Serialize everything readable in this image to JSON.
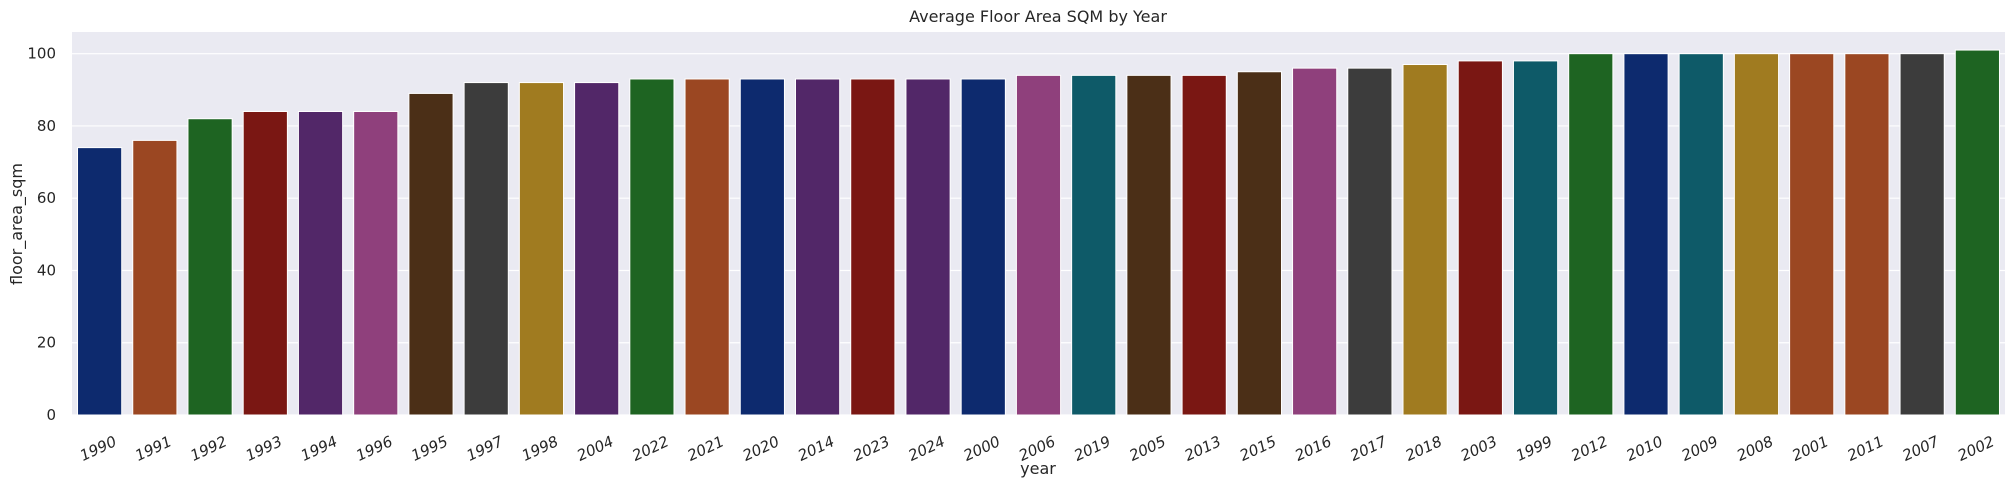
{
  "chart_data": {
    "type": "bar",
    "title": "Average Floor Area SQM by Year",
    "xlabel": "year",
    "ylabel": "floor_area_sqm",
    "categories": [
      "1990",
      "1991",
      "1992",
      "1993",
      "1994",
      "1996",
      "1995",
      "1997",
      "1998",
      "2004",
      "2022",
      "2021",
      "2020",
      "2014",
      "2023",
      "2024",
      "2000",
      "2006",
      "2019",
      "2005",
      "2013",
      "2015",
      "2016",
      "2017",
      "2018",
      "2003",
      "1999",
      "2012",
      "2010",
      "2009",
      "2008",
      "2001",
      "2011",
      "2007",
      "2002"
    ],
    "values": [
      74,
      76,
      82,
      84,
      84,
      84,
      89,
      92,
      92,
      92,
      93,
      93,
      93,
      93,
      93,
      93,
      93,
      94,
      94,
      94,
      94,
      95,
      96,
      96,
      97,
      98,
      98,
      100,
      100,
      100,
      100,
      100,
      100,
      100,
      101
    ],
    "colors": [
      "#0d2a6e",
      "#9b4722",
      "#1e6422",
      "#7a1713",
      "#522768",
      "#8f407c",
      "#4b2f17",
      "#3c3c3c",
      "#a07b20",
      "#522768",
      "#1e6422",
      "#9b4722",
      "#0d2a6e",
      "#522768",
      "#7a1713",
      "#522768",
      "#0d2a6e",
      "#8f407c",
      "#0e5a68",
      "#4b2f17",
      "#7a1713",
      "#4b2f17",
      "#8f407c",
      "#3c3c3c",
      "#a07b20",
      "#7a1713",
      "#0e5a68",
      "#1e6422",
      "#0d2a6e",
      "#0e5a68",
      "#a07b20",
      "#9b4722",
      "#9b4722",
      "#3c3c3c",
      "#1e6422"
    ],
    "yticks": [
      0,
      20,
      40,
      60,
      80,
      100
    ],
    "ylim": [
      0,
      106
    ],
    "grid": true,
    "background": "#eaeaf2"
  }
}
